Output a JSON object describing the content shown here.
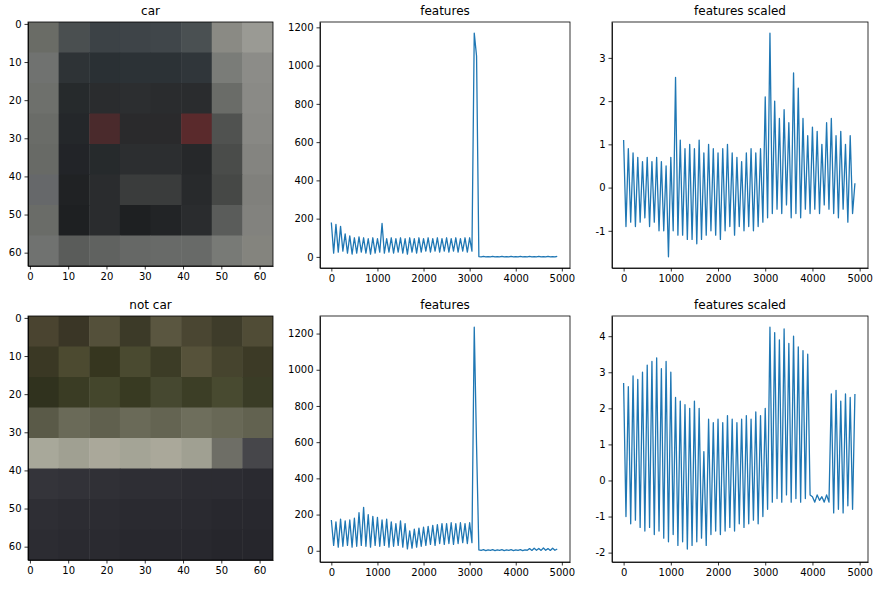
{
  "chart_data": [
    {
      "type": "image",
      "title": "car",
      "xlim": [
        -0.5,
        63.5
      ],
      "ylim": [
        63.5,
        -0.5
      ],
      "xticks": [
        0,
        10,
        20,
        30,
        40,
        50,
        60
      ],
      "yticks": [
        0,
        10,
        20,
        30,
        40,
        50,
        60
      ],
      "cells": [
        [
          "#6a6c66",
          "#4a4f50",
          "#3c4246",
          "#3e4448",
          "#40464a",
          "#4a5052",
          "#8a8a84",
          "#9a9a94"
        ],
        [
          "#707270",
          "#2e3336",
          "#2a3034",
          "#2c3236",
          "#2c3236",
          "#30363a",
          "#7a7c78",
          "#8c8c88"
        ],
        [
          "#6e706c",
          "#262a2c",
          "#2a2c2e",
          "#2c2e30",
          "#2a2c2e",
          "#2a2c2e",
          "#6a6c68",
          "#8a8a86"
        ],
        [
          "#6a6c68",
          "#24272a",
          "#4a2a2c",
          "#2a2a2c",
          "#2a2a2c",
          "#5a2a2c",
          "#505250",
          "#888884"
        ],
        [
          "#686a66",
          "#222428",
          "#262a2c",
          "#2c2e30",
          "#2c2e30",
          "#26282a",
          "#4a4c4a",
          "#848480"
        ],
        [
          "#66686a",
          "#202224",
          "#2a2c2e",
          "#3a3c3c",
          "#3a3c3c",
          "#282a2c",
          "#464846",
          "#80807c"
        ],
        [
          "#6a6c68",
          "#1e2022",
          "#2a2c2e",
          "#1e2022",
          "#222426",
          "#2a2c2e",
          "#5a5c5a",
          "#82827e"
        ],
        [
          "#707270",
          "#5a5c5a",
          "#606260",
          "#666866",
          "#686a68",
          "#686a68",
          "#787a76",
          "#84847e"
        ]
      ]
    },
    {
      "type": "line",
      "title": "features",
      "color": "#1f77b4",
      "xlim": [
        -246,
        5177
      ],
      "ylim": [
        -58,
        1228
      ],
      "xticks": [
        0,
        1000,
        2000,
        3000,
        4000,
        5000
      ],
      "yticks": [
        0,
        200,
        400,
        600,
        800,
        1000,
        1200
      ],
      "x": [
        0,
        50,
        100,
        150,
        200,
        250,
        300,
        350,
        400,
        450,
        500,
        550,
        600,
        650,
        700,
        750,
        800,
        850,
        900,
        950,
        1000,
        1050,
        1100,
        1150,
        1200,
        1250,
        1300,
        1350,
        1400,
        1450,
        1500,
        1550,
        1600,
        1650,
        1700,
        1750,
        1800,
        1850,
        1900,
        1950,
        2000,
        2050,
        2100,
        2150,
        2200,
        2250,
        2300,
        2350,
        2400,
        2450,
        2500,
        2550,
        2600,
        2650,
        2700,
        2750,
        2800,
        2850,
        2900,
        2950,
        3000,
        3050,
        3100,
        3150,
        3200,
        3250,
        3300,
        3350,
        3400,
        3450,
        3500,
        3550,
        3600,
        3650,
        3700,
        3750,
        3800,
        3850,
        3900,
        3950,
        4000,
        4050,
        4100,
        4150,
        4200,
        4250,
        4300,
        4350,
        4400,
        4450,
        4500,
        4550,
        4600,
        4650,
        4700,
        4750,
        4800,
        4850,
        4900
      ],
      "values": [
        180,
        20,
        170,
        25,
        160,
        30,
        120,
        20,
        110,
        15,
        100,
        20,
        105,
        25,
        100,
        20,
        95,
        15,
        100,
        20,
        95,
        25,
        175,
        20,
        95,
        25,
        100,
        20,
        95,
        25,
        100,
        20,
        95,
        15,
        100,
        25,
        95,
        20,
        100,
        25,
        95,
        30,
        100,
        25,
        95,
        30,
        100,
        25,
        95,
        30,
        100,
        25,
        95,
        30,
        100,
        25,
        95,
        30,
        100,
        25,
        100,
        30,
        1170,
        1050,
        2,
        0,
        3,
        0,
        2,
        0,
        3,
        0,
        2,
        0,
        3,
        0,
        2,
        0,
        3,
        0,
        2,
        0,
        3,
        0,
        2,
        0,
        3,
        0,
        2,
        0,
        3,
        0,
        2,
        0,
        3,
        0,
        2,
        0,
        3
      ]
    },
    {
      "type": "line",
      "title": "features scaled",
      "color": "#1f77b4",
      "xlim": [
        -246,
        5177
      ],
      "ylim": [
        -1.86,
        3.83
      ],
      "xticks": [
        0,
        1000,
        2000,
        3000,
        4000,
        5000
      ],
      "yticks": [
        -1,
        0,
        1,
        2,
        3
      ],
      "x": [
        0,
        50,
        100,
        150,
        200,
        250,
        300,
        350,
        400,
        450,
        500,
        550,
        600,
        650,
        700,
        750,
        800,
        850,
        900,
        950,
        1000,
        1050,
        1100,
        1150,
        1200,
        1250,
        1300,
        1350,
        1400,
        1450,
        1500,
        1550,
        1600,
        1650,
        1700,
        1750,
        1800,
        1850,
        1900,
        1950,
        2000,
        2050,
        2100,
        2150,
        2200,
        2250,
        2300,
        2350,
        2400,
        2450,
        2500,
        2550,
        2600,
        2650,
        2700,
        2750,
        2800,
        2850,
        2900,
        2950,
        3000,
        3050,
        3100,
        3150,
        3200,
        3250,
        3300,
        3350,
        3400,
        3450,
        3500,
        3550,
        3600,
        3650,
        3700,
        3750,
        3800,
        3850,
        3900,
        3950,
        4000,
        4050,
        4100,
        4150,
        4200,
        4250,
        4300,
        4350,
        4400,
        4450,
        4500,
        4550,
        4600,
        4650,
        4700,
        4750,
        4800,
        4850,
        4900
      ],
      "values": [
        1.1,
        -0.9,
        0.9,
        -0.8,
        0.8,
        -0.9,
        0.7,
        -0.8,
        0.6,
        -0.7,
        0.7,
        -0.9,
        0.6,
        -0.8,
        0.7,
        -1.0,
        0.6,
        -1.0,
        0.5,
        -1.6,
        0.7,
        -1.0,
        2.55,
        -1.1,
        1.1,
        -1.1,
        0.9,
        -1.2,
        1.0,
        -1.2,
        0.9,
        -1.3,
        1.1,
        -1.2,
        0.8,
        -1.1,
        1.0,
        -1.0,
        0.9,
        -1.1,
        0.8,
        -1.2,
        0.9,
        -1.0,
        1.0,
        -0.9,
        0.8,
        -1.1,
        0.7,
        -0.9,
        0.6,
        -1.0,
        0.8,
        -0.9,
        0.9,
        -1.0,
        0.8,
        -0.9,
        0.9,
        -0.8,
        2.1,
        -0.7,
        3.57,
        -0.6,
        2.0,
        -0.5,
        1.6,
        -0.6,
        1.8,
        -0.4,
        1.5,
        -0.7,
        2.65,
        -0.6,
        2.3,
        -0.7,
        1.6,
        -0.5,
        1.2,
        -0.6,
        1.4,
        -0.5,
        1.3,
        -0.6,
        1.0,
        -0.4,
        1.5,
        -0.5,
        1.6,
        -0.6,
        1.2,
        -0.7,
        1.3,
        -0.5,
        1.0,
        -0.8,
        1.2,
        -0.6,
        0.1
      ]
    },
    {
      "type": "image",
      "title": "not car",
      "xlim": [
        -0.5,
        63.5
      ],
      "ylim": [
        63.5,
        -0.5
      ],
      "xticks": [
        0,
        10,
        20,
        30,
        40,
        50,
        60
      ],
      "yticks": [
        0,
        10,
        20,
        30,
        40,
        50,
        60
      ],
      "cells": [
        [
          "#4a4430",
          "#3a3626",
          "#54503a",
          "#3c3a28",
          "#5a5640",
          "#4a4632",
          "#3e3c2a",
          "#504c36"
        ],
        [
          "#3a3824",
          "#4c4a30",
          "#36361f",
          "#4a4a30",
          "#3c3c26",
          "#56523a",
          "#46442e",
          "#3c3a26"
        ],
        [
          "#30321e",
          "#3a3c24",
          "#44462c",
          "#383a22",
          "#464830",
          "#3c3e26",
          "#484a30",
          "#3a3c26"
        ],
        [
          "#5a5a48",
          "#6a6a58",
          "#60604e",
          "#6a6a58",
          "#646452",
          "#6e6e5c",
          "#686856",
          "#626250"
        ],
        [
          "#a8a89a",
          "#a0a092",
          "#aaa89a",
          "#a4a496",
          "#aaa89a",
          "#a0a092",
          "#6e6e66",
          "#46464a"
        ],
        [
          "#34343a",
          "#323238",
          "#303036",
          "#2e2e34",
          "#2e2e34",
          "#2c2c32",
          "#2c2c32",
          "#2a2a30"
        ],
        [
          "#2e2e34",
          "#2c2c32",
          "#2c2c32",
          "#2a2a30",
          "#2a2a30",
          "#2a2a30",
          "#28282e",
          "#28282e"
        ],
        [
          "#2c2c32",
          "#2a2a30",
          "#2a2a30",
          "#28282e",
          "#28282e",
          "#28282e",
          "#26262c",
          "#26262c"
        ]
      ]
    },
    {
      "type": "line",
      "title": "features",
      "color": "#1f77b4",
      "xlim": [
        -246,
        5177
      ],
      "ylim": [
        -62,
        1297
      ],
      "xticks": [
        0,
        1000,
        2000,
        3000,
        4000,
        5000
      ],
      "yticks": [
        0,
        200,
        400,
        600,
        800,
        1000,
        1200
      ],
      "x": [
        0,
        50,
        100,
        150,
        200,
        250,
        300,
        350,
        400,
        450,
        500,
        550,
        600,
        650,
        700,
        750,
        800,
        850,
        900,
        950,
        1000,
        1050,
        1100,
        1150,
        1200,
        1250,
        1300,
        1350,
        1400,
        1450,
        1500,
        1550,
        1600,
        1650,
        1700,
        1750,
        1800,
        1850,
        1900,
        1950,
        2000,
        2050,
        2100,
        2150,
        2200,
        2250,
        2300,
        2350,
        2400,
        2450,
        2500,
        2550,
        2600,
        2650,
        2700,
        2750,
        2800,
        2850,
        2900,
        2950,
        3000,
        3050,
        3100,
        3150,
        3200,
        3250,
        3300,
        3350,
        3400,
        3450,
        3500,
        3550,
        3600,
        3650,
        3700,
        3750,
        3800,
        3850,
        3900,
        3950,
        4000,
        4050,
        4100,
        4150,
        4200,
        4250,
        4300,
        4350,
        4400,
        4450,
        4500,
        4550,
        4600,
        4650,
        4700,
        4750,
        4800,
        4850,
        4900
      ],
      "values": [
        170,
        30,
        160,
        20,
        175,
        25,
        165,
        30,
        170,
        20,
        180,
        25,
        210,
        30,
        240,
        25,
        200,
        20,
        190,
        30,
        185,
        25,
        170,
        30,
        175,
        20,
        160,
        25,
        150,
        30,
        165,
        20,
        150,
        10,
        110,
        15,
        120,
        20,
        125,
        25,
        130,
        30,
        135,
        35,
        140,
        30,
        145,
        40,
        150,
        35,
        150,
        40,
        155,
        35,
        150,
        40,
        155,
        45,
        150,
        40,
        155,
        45,
        1235,
        580,
        5,
        2,
        6,
        1,
        5,
        2,
        6,
        1,
        5,
        2,
        6,
        1,
        5,
        2,
        6,
        1,
        5,
        2,
        6,
        1,
        5,
        3,
        12,
        2,
        14,
        3,
        13,
        2,
        15,
        3,
        12,
        2,
        14,
        3,
        10
      ]
    },
    {
      "type": "line",
      "title": "features scaled",
      "color": "#1f77b4",
      "xlim": [
        -246,
        5177
      ],
      "ylim": [
        -2.26,
        4.56
      ],
      "xticks": [
        0,
        1000,
        2000,
        3000,
        4000,
        5000
      ],
      "yticks": [
        -2,
        -1,
        0,
        1,
        2,
        3,
        4
      ],
      "x": [
        0,
        50,
        100,
        150,
        200,
        250,
        300,
        350,
        400,
        450,
        500,
        550,
        600,
        650,
        700,
        750,
        800,
        850,
        900,
        950,
        1000,
        1050,
        1100,
        1150,
        1200,
        1250,
        1300,
        1350,
        1400,
        1450,
        1500,
        1550,
        1600,
        1650,
        1700,
        1750,
        1800,
        1850,
        1900,
        1950,
        2000,
        2050,
        2100,
        2150,
        2200,
        2250,
        2300,
        2350,
        2400,
        2450,
        2500,
        2550,
        2600,
        2650,
        2700,
        2750,
        2800,
        2850,
        2900,
        2950,
        3000,
        3050,
        3100,
        3150,
        3200,
        3250,
        3300,
        3350,
        3400,
        3450,
        3500,
        3550,
        3600,
        3650,
        3700,
        3750,
        3800,
        3850,
        3900,
        3950,
        4000,
        4050,
        4100,
        4150,
        4200,
        4250,
        4300,
        4350,
        4400,
        4450,
        4500,
        4550,
        4600,
        4650,
        4700,
        4750,
        4800,
        4850,
        4900
      ],
      "values": [
        2.7,
        -1.0,
        2.6,
        -1.2,
        2.9,
        -1.1,
        2.8,
        -1.3,
        3.0,
        -1.4,
        3.2,
        -1.3,
        3.3,
        -1.5,
        3.4,
        -1.4,
        3.1,
        -1.6,
        3.3,
        -1.7,
        3.0,
        -1.5,
        2.3,
        -1.8,
        2.2,
        -1.7,
        2.1,
        -1.9,
        2.0,
        -1.8,
        2.2,
        -1.7,
        2.0,
        -1.6,
        0.8,
        -1.8,
        1.7,
        -1.5,
        1.6,
        -1.4,
        1.7,
        -1.5,
        1.6,
        -1.4,
        1.8,
        -1.3,
        1.7,
        -1.4,
        1.6,
        -1.2,
        1.7,
        -1.3,
        1.8,
        -1.2,
        1.7,
        -1.1,
        1.9,
        -1.2,
        1.8,
        -1.0,
        2.0,
        -0.8,
        4.25,
        -0.6,
        4.1,
        -0.5,
        3.9,
        -0.6,
        4.2,
        -0.4,
        3.8,
        -0.6,
        4.0,
        -0.5,
        3.7,
        -0.6,
        3.6,
        -0.5,
        3.5,
        -0.4,
        -0.45,
        -0.6,
        -0.4,
        -0.55,
        -0.45,
        -0.6,
        -0.4,
        -0.6,
        2.4,
        -0.9,
        2.5,
        -0.8,
        2.2,
        -0.9,
        2.4,
        -0.7,
        2.3,
        -0.8,
        2.4
      ]
    }
  ]
}
